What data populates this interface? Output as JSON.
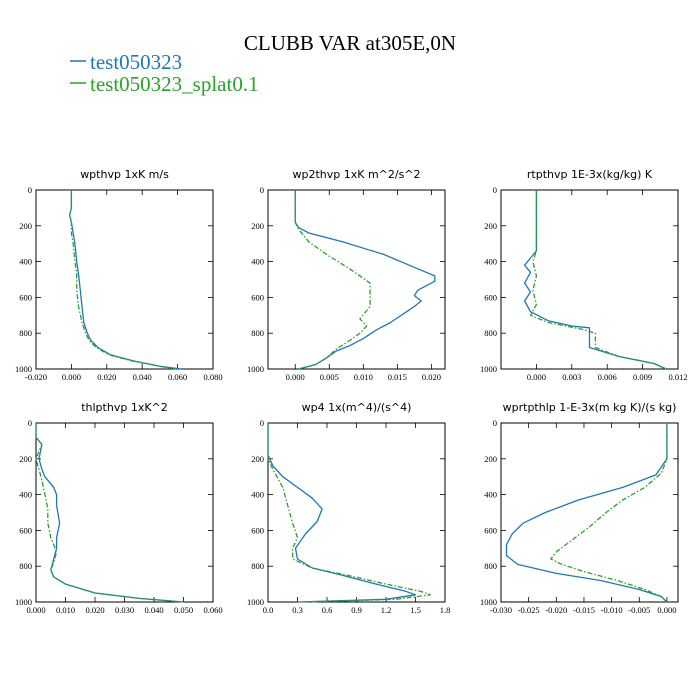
{
  "figure": {
    "title": "CLUBB VAR at305E,0N",
    "legend": [
      {
        "label": "test050323",
        "color": "#1f77b4",
        "dash": "solid"
      },
      {
        "label": "test050323_splat0.1",
        "color": "#2ca02c",
        "dash": "dashdot"
      }
    ]
  },
  "chart_data": [
    {
      "type": "line",
      "title": "wpthvp  1xK m/s",
      "xlim": [
        -0.02,
        0.08
      ],
      "xticks": [
        -0.02,
        0.0,
        0.02,
        0.04,
        0.06,
        0.08
      ],
      "xtick_labels": [
        "-0.020",
        "0.000",
        "0.020",
        "0.040",
        "0.060",
        "0.080"
      ],
      "ylim": [
        1000,
        0
      ],
      "yticks": [
        0,
        200,
        400,
        600,
        800,
        1000
      ],
      "ytick_labels": [
        "0",
        "200",
        "400",
        "600",
        "800",
        "1000"
      ],
      "series": [
        {
          "name": "test050323",
          "points": [
            [
              0.0,
              0
            ],
            [
              0.0,
              100
            ],
            [
              -0.001,
              140
            ],
            [
              0.0,
              180
            ],
            [
              0.001,
              240
            ],
            [
              0.002,
              300
            ],
            [
              0.003,
              400
            ],
            [
              0.004,
              470
            ],
            [
              0.005,
              560
            ],
            [
              0.006,
              650
            ],
            [
              0.007,
              740
            ],
            [
              0.009,
              800
            ],
            [
              0.011,
              840
            ],
            [
              0.015,
              880
            ],
            [
              0.022,
              920
            ],
            [
              0.035,
              955
            ],
            [
              0.05,
              985
            ],
            [
              0.062,
              1000
            ]
          ]
        },
        {
          "name": "test050323_splat0.1",
          "points": [
            [
              0.0,
              0
            ],
            [
              0.0,
              100
            ],
            [
              -0.001,
              140
            ],
            [
              0.0,
              180
            ],
            [
              0.0,
              240
            ],
            [
              0.001,
              300
            ],
            [
              0.002,
              400
            ],
            [
              0.003,
              470
            ],
            [
              0.003,
              560
            ],
            [
              0.004,
              650
            ],
            [
              0.006,
              740
            ],
            [
              0.008,
              800
            ],
            [
              0.01,
              840
            ],
            [
              0.014,
              880
            ],
            [
              0.021,
              920
            ],
            [
              0.034,
              955
            ],
            [
              0.05,
              985
            ],
            [
              0.06,
              1000
            ]
          ]
        }
      ]
    },
    {
      "type": "line",
      "title": "wp2thvp  1xK m^2/s^2",
      "xlim": [
        -0.004,
        0.022
      ],
      "xticks": [
        0.0,
        0.005,
        0.01,
        0.015,
        0.02
      ],
      "xtick_labels": [
        "0.000",
        "0.005",
        "0.010",
        "0.015",
        "0.020"
      ],
      "ylim": [
        1000,
        0
      ],
      "yticks": [
        0,
        200,
        400,
        600,
        800,
        1000
      ],
      "ytick_labels": [
        "0",
        "200",
        "400",
        "600",
        "800",
        "1000"
      ],
      "series": [
        {
          "name": "test050323",
          "points": [
            [
              0.0,
              0
            ],
            [
              0.0,
              180
            ],
            [
              0.0005,
              210
            ],
            [
              0.002,
              240
            ],
            [
              0.007,
              290
            ],
            [
              0.013,
              360
            ],
            [
              0.018,
              440
            ],
            [
              0.0205,
              480
            ],
            [
              0.0205,
              510
            ],
            [
              0.018,
              560
            ],
            [
              0.0175,
              590
            ],
            [
              0.0185,
              620
            ],
            [
              0.0175,
              650
            ],
            [
              0.014,
              740
            ],
            [
              0.012,
              780
            ],
            [
              0.01,
              830
            ],
            [
              0.008,
              870
            ],
            [
              0.006,
              900
            ],
            [
              0.0045,
              940
            ],
            [
              0.003,
              975
            ],
            [
              0.0005,
              1000
            ]
          ]
        },
        {
          "name": "test050323_splat0.1",
          "points": [
            [
              0.0,
              0
            ],
            [
              0.0,
              180
            ],
            [
              0.0005,
              220
            ],
            [
              0.002,
              290
            ],
            [
              0.005,
              370
            ],
            [
              0.008,
              440
            ],
            [
              0.011,
              520
            ],
            [
              0.011,
              580
            ],
            [
              0.011,
              650
            ],
            [
              0.0095,
              720
            ],
            [
              0.0105,
              760
            ],
            [
              0.0095,
              800
            ],
            [
              0.008,
              840
            ],
            [
              0.006,
              890
            ],
            [
              0.0045,
              940
            ],
            [
              0.003,
              975
            ],
            [
              0.0005,
              1000
            ]
          ]
        }
      ]
    },
    {
      "type": "line",
      "title": "rtpthvp  1E-3x(kg/kg) K",
      "xlim": [
        -0.003,
        0.012
      ],
      "xticks": [
        0.0,
        0.003,
        0.006,
        0.009,
        0.012
      ],
      "xtick_labels": [
        "0.000",
        "0.003",
        "0.006",
        "0.009",
        "0.012"
      ],
      "ylim": [
        1000,
        0
      ],
      "yticks": [
        0,
        200,
        400,
        600,
        800,
        1000
      ],
      "ytick_labels": [
        "0",
        "200",
        "400",
        "600",
        "800",
        "1000"
      ],
      "series": [
        {
          "name": "test050323",
          "points": [
            [
              0.0,
              0
            ],
            [
              0.0,
              340
            ],
            [
              -0.0005,
              380
            ],
            [
              -0.001,
              420
            ],
            [
              -0.0005,
              460
            ],
            [
              -0.001,
              520
            ],
            [
              -0.0005,
              570
            ],
            [
              -0.001,
              620
            ],
            [
              -0.0005,
              680
            ],
            [
              0.001,
              730
            ],
            [
              0.003,
              760
            ],
            [
              0.0045,
              770
            ],
            [
              0.0045,
              820
            ],
            [
              0.0045,
              880
            ],
            [
              0.007,
              930
            ],
            [
              0.01,
              970
            ],
            [
              0.011,
              1000
            ]
          ]
        },
        {
          "name": "test050323_splat0.1",
          "points": [
            [
              0.0,
              0
            ],
            [
              0.0,
              340
            ],
            [
              -0.0003,
              400
            ],
            [
              0.0,
              480
            ],
            [
              -0.0003,
              560
            ],
            [
              0.0,
              640
            ],
            [
              -0.0005,
              700
            ],
            [
              0.001,
              740
            ],
            [
              0.004,
              780
            ],
            [
              0.005,
              800
            ],
            [
              0.005,
              840
            ],
            [
              0.005,
              880
            ],
            [
              0.007,
              930
            ],
            [
              0.01,
              970
            ],
            [
              0.011,
              1000
            ]
          ]
        }
      ]
    },
    {
      "type": "line",
      "title": "thlpthvp  1xK^2",
      "xlim": [
        0.0,
        0.06
      ],
      "xticks": [
        0.0,
        0.01,
        0.02,
        0.03,
        0.04,
        0.05,
        0.06
      ],
      "xtick_labels": [
        "0.000",
        "0.010",
        "0.020",
        "0.030",
        "0.040",
        "0.050",
        "0.060"
      ],
      "ylim": [
        1000,
        0
      ],
      "yticks": [
        0,
        200,
        400,
        600,
        800,
        1000
      ],
      "ytick_labels": [
        "0",
        "200",
        "400",
        "600",
        "800",
        "1000"
      ],
      "series": [
        {
          "name": "test050323",
          "points": [
            [
              0.0,
              0
            ],
            [
              0.0,
              80
            ],
            [
              0.002,
              120
            ],
            [
              0.001,
              200
            ],
            [
              0.002,
              260
            ],
            [
              0.003,
              300
            ],
            [
              0.006,
              360
            ],
            [
              0.007,
              400
            ],
            [
              0.007,
              460
            ],
            [
              0.008,
              560
            ],
            [
              0.007,
              640
            ],
            [
              0.007,
              700
            ],
            [
              0.006,
              760
            ],
            [
              0.005,
              820
            ],
            [
              0.006,
              860
            ],
            [
              0.01,
              900
            ],
            [
              0.02,
              950
            ],
            [
              0.035,
              980
            ],
            [
              0.05,
              1000
            ]
          ]
        },
        {
          "name": "test050323_splat0.1",
          "points": [
            [
              0.0,
              0
            ],
            [
              0.0,
              80
            ],
            [
              0.002,
              120
            ],
            [
              0.0,
              200
            ],
            [
              0.001,
              260
            ],
            [
              0.002,
              320
            ],
            [
              0.003,
              400
            ],
            [
              0.004,
              480
            ],
            [
              0.004,
              560
            ],
            [
              0.005,
              640
            ],
            [
              0.007,
              720
            ],
            [
              0.006,
              780
            ],
            [
              0.005,
              820
            ],
            [
              0.006,
              860
            ],
            [
              0.01,
              900
            ],
            [
              0.02,
              950
            ],
            [
              0.035,
              980
            ],
            [
              0.05,
              1000
            ]
          ]
        }
      ]
    },
    {
      "type": "line",
      "title": "wp4  1x(m^4)/(s^4)",
      "xlim": [
        0.0,
        1.8
      ],
      "xticks": [
        0.0,
        0.3,
        0.6,
        0.9,
        1.2,
        1.5,
        1.8
      ],
      "xtick_labels": [
        "0.0",
        "0.3",
        "0.6",
        "0.9",
        "1.2",
        "1.5",
        "1.8"
      ],
      "ylim": [
        1000,
        0
      ],
      "yticks": [
        0,
        200,
        400,
        600,
        800,
        1000
      ],
      "ytick_labels": [
        "0",
        "200",
        "400",
        "600",
        "800",
        "1000"
      ],
      "series": [
        {
          "name": "test050323",
          "points": [
            [
              0.0,
              0
            ],
            [
              0.0,
              180
            ],
            [
              0.05,
              240
            ],
            [
              0.15,
              300
            ],
            [
              0.3,
              360
            ],
            [
              0.45,
              420
            ],
            [
              0.55,
              480
            ],
            [
              0.5,
              550
            ],
            [
              0.38,
              620
            ],
            [
              0.28,
              700
            ],
            [
              0.3,
              760
            ],
            [
              0.45,
              810
            ],
            [
              0.75,
              850
            ],
            [
              1.1,
              900
            ],
            [
              1.4,
              940
            ],
            [
              1.5,
              960
            ],
            [
              1.2,
              985
            ],
            [
              0.3,
              1000
            ]
          ]
        },
        {
          "name": "test050323_splat0.1",
          "points": [
            [
              0.0,
              0
            ],
            [
              0.0,
              200
            ],
            [
              0.05,
              260
            ],
            [
              0.15,
              360
            ],
            [
              0.2,
              460
            ],
            [
              0.25,
              560
            ],
            [
              0.3,
              640
            ],
            [
              0.25,
              700
            ],
            [
              0.25,
              760
            ],
            [
              0.45,
              810
            ],
            [
              0.8,
              850
            ],
            [
              1.2,
              900
            ],
            [
              1.55,
              940
            ],
            [
              1.65,
              960
            ],
            [
              1.3,
              985
            ],
            [
              0.4,
              1000
            ]
          ]
        }
      ]
    },
    {
      "type": "line",
      "title": "wprtpthlp  1-E-3x(m kg K)/(s kg)",
      "xlim": [
        -0.03,
        0.002
      ],
      "xticks": [
        -0.03,
        -0.025,
        -0.02,
        -0.015,
        -0.01,
        -0.005,
        0.0
      ],
      "xtick_labels": [
        "-0.030",
        "-0.025",
        "-0.020",
        "-0.015",
        "-0.010",
        "-0.005",
        "0.000"
      ],
      "ylim": [
        1000,
        0
      ],
      "yticks": [
        0,
        200,
        400,
        600,
        800,
        1000
      ],
      "ytick_labels": [
        "0",
        "200",
        "400",
        "600",
        "800",
        "1000"
      ],
      "series": [
        {
          "name": "test050323",
          "points": [
            [
              0.0,
              0
            ],
            [
              0.0,
              200
            ],
            [
              -0.002,
              290
            ],
            [
              -0.008,
              360
            ],
            [
              -0.016,
              430
            ],
            [
              -0.022,
              500
            ],
            [
              -0.026,
              560
            ],
            [
              -0.028,
              620
            ],
            [
              -0.029,
              680
            ],
            [
              -0.029,
              740
            ],
            [
              -0.027,
              790
            ],
            [
              -0.02,
              840
            ],
            [
              -0.012,
              880
            ],
            [
              -0.005,
              930
            ],
            [
              -0.001,
              970
            ],
            [
              0.0,
              1000
            ]
          ]
        },
        {
          "name": "test050323_splat0.1",
          "points": [
            [
              0.0,
              0
            ],
            [
              0.0,
              200
            ],
            [
              -0.001,
              280
            ],
            [
              -0.004,
              360
            ],
            [
              -0.008,
              430
            ],
            [
              -0.011,
              500
            ],
            [
              -0.014,
              580
            ],
            [
              -0.017,
              650
            ],
            [
              -0.02,
              720
            ],
            [
              -0.021,
              760
            ],
            [
              -0.019,
              790
            ],
            [
              -0.015,
              830
            ],
            [
              -0.009,
              880
            ],
            [
              -0.004,
              930
            ],
            [
              -0.001,
              970
            ],
            [
              0.0,
              1000
            ]
          ]
        }
      ]
    }
  ]
}
